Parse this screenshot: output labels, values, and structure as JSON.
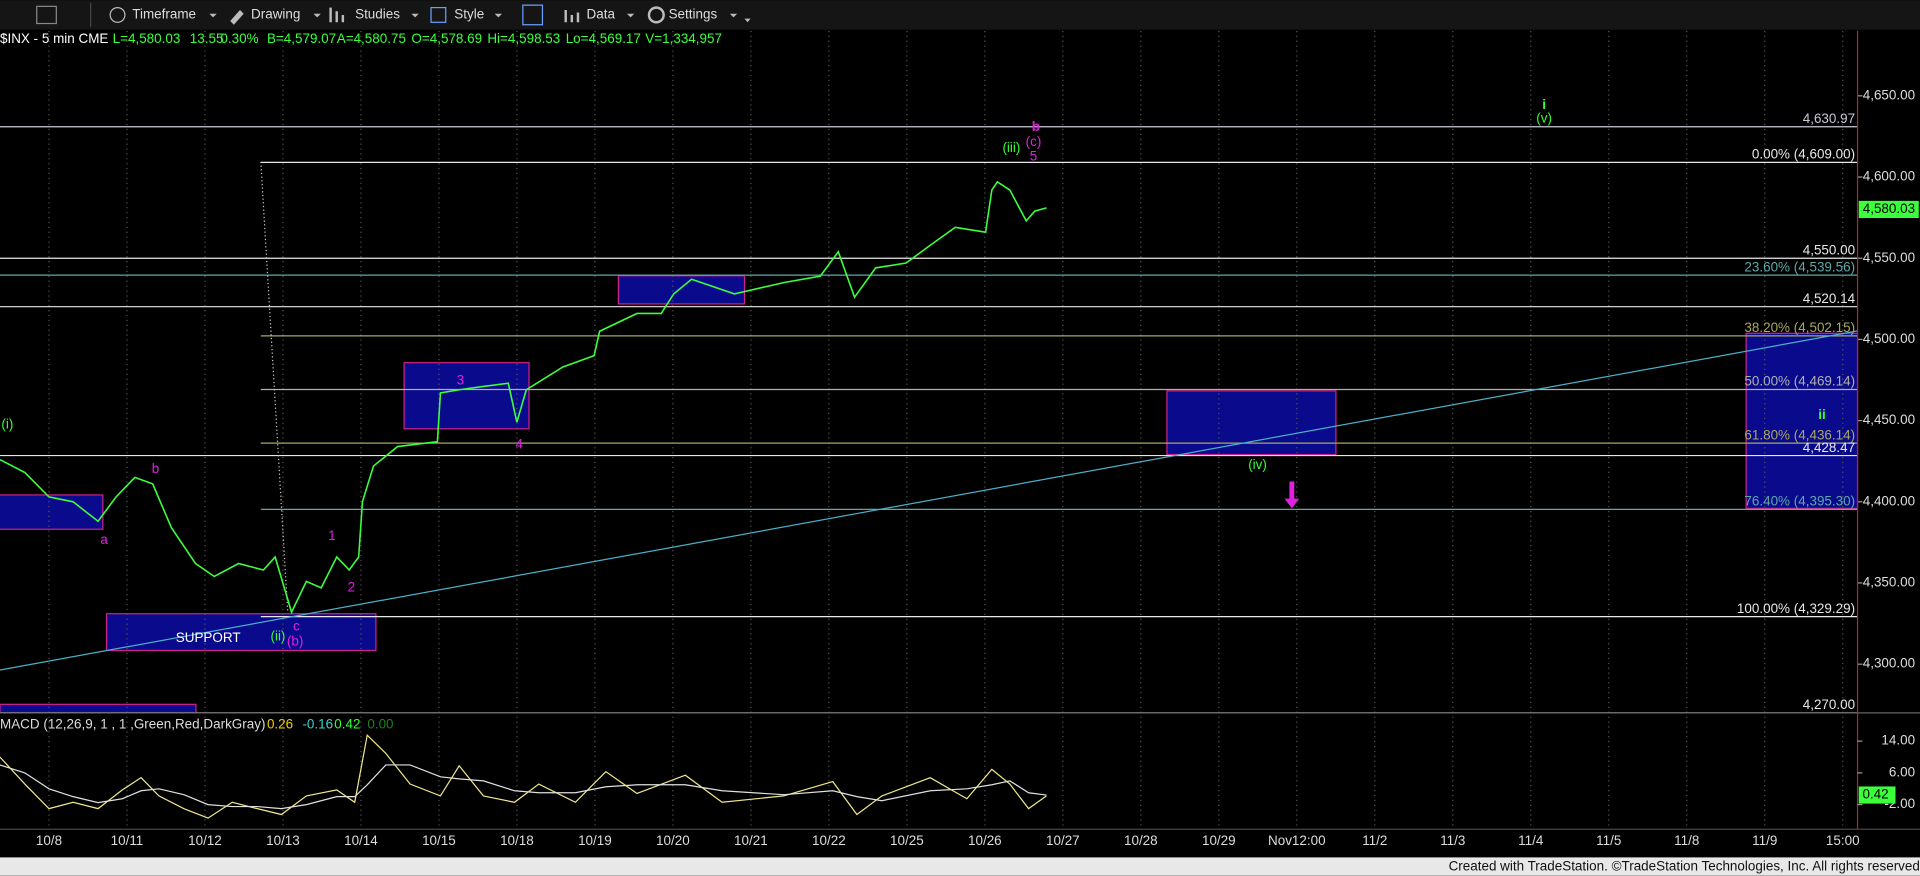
{
  "toolbar": {
    "items": [
      "Timeframe",
      "Drawing",
      "Studies",
      "Style",
      "Data",
      "Settings"
    ]
  },
  "symbol_bar": {
    "symbol": "$INX - 5 min CME",
    "fields": [
      "L=4,580.03",
      "13.55",
      "0.30%",
      "B=4,579.07",
      "A=4,580.75",
      "O=4,578.69",
      "Hi=4,598.53",
      "Lo=4,569.17",
      "V=1,334,957"
    ]
  },
  "footer": "Created with TradeStation. ©TradeStation Technologies, Inc. All rights reserved.",
  "chart_data": {
    "type": "line",
    "x": [
      -0.63,
      -0.31,
      0,
      0.31,
      0.63,
      0.86,
      1.1,
      1.33,
      1.57,
      1.88,
      2.12,
      2.43,
      2.75,
      2.9,
      3.11,
      3.3,
      3.49,
      3.69,
      3.85,
      3.97,
      4.02,
      4.16,
      4.47,
      4.98,
      5.02,
      5.26,
      5.57,
      5.89,
      6.0,
      6.12,
      6.59,
      6.99,
      7.06,
      7.54,
      7.85,
      8.01,
      8.24,
      8.79,
      9.42,
      9.89,
      10.12,
      10.33,
      10.6,
      10.99,
      11.3,
      11.62,
      12.01,
      12.09,
      12.16,
      12.32,
      12.53,
      12.64,
      12.79
    ],
    "series": [
      {
        "color": "#3cff3c",
        "values": [
          4426,
          4418,
          4403,
          4400,
          4388,
          4403,
          4415,
          4411,
          4384,
          4362,
          4354,
          4362,
          4358,
          4366,
          4332,
          4351,
          4347,
          4366,
          4358,
          4366,
          4400,
          4422,
          4434,
          4437,
          4467,
          4469,
          4471,
          4473,
          4449,
          4469,
          4483,
          4490,
          4505,
          4516,
          4516,
          4528,
          4537,
          4528,
          4535,
          4539,
          4554,
          4526,
          4544,
          4547,
          4558,
          4569,
          4566,
          4592,
          4597,
          4592,
          4573,
          4579,
          4581
        ]
      }
    ],
    "xlim": [
      -0.628,
      23.19
    ],
    "xticks": [
      {
        "value": 0,
        "label": "10/8"
      },
      {
        "value": 1,
        "label": "10/11"
      },
      {
        "value": 2,
        "label": "10/12"
      },
      {
        "value": 3,
        "label": "10/13"
      },
      {
        "value": 4,
        "label": "10/14"
      },
      {
        "value": 5,
        "label": "10/15"
      },
      {
        "value": 6,
        "label": "10/18"
      },
      {
        "value": 7,
        "label": "10/19"
      },
      {
        "value": 8,
        "label": "10/20"
      },
      {
        "value": 9,
        "label": "10/21"
      },
      {
        "value": 10,
        "label": "10/22"
      },
      {
        "value": 11,
        "label": "10/25"
      },
      {
        "value": 12,
        "label": "10/26"
      },
      {
        "value": 13,
        "label": "10/27"
      },
      {
        "value": 14,
        "label": "10/28"
      },
      {
        "value": 15,
        "label": "10/29"
      },
      {
        "value": 16,
        "label": "Nov12:00"
      },
      {
        "value": 17,
        "label": "11/2"
      },
      {
        "value": 18,
        "label": "11/3"
      },
      {
        "value": 19,
        "label": "11/4"
      },
      {
        "value": 20,
        "label": "11/5"
      },
      {
        "value": 21,
        "label": "11/8"
      },
      {
        "value": 22,
        "label": "11/9"
      },
      {
        "value": 23,
        "label": "15:00"
      }
    ],
    "ylim": [
      4270,
      4690
    ],
    "yticks": [
      {
        "value": 4300,
        "label": "4,300.00"
      },
      {
        "value": 4350,
        "label": "4,350.00"
      },
      {
        "value": 4400,
        "label": "4,400.00"
      },
      {
        "value": 4450,
        "label": "4,450.00"
      },
      {
        "value": 4500,
        "label": "4,500.00"
      },
      {
        "value": 4550,
        "label": "4,550.00"
      },
      {
        "value": 4600,
        "label": "4,600.00"
      },
      {
        "value": 4650,
        "label": "4,650.00"
      }
    ],
    "last_price": {
      "value": 4580.03,
      "label": "4,580.03"
    },
    "levels": [
      {
        "value": 4630.97,
        "label": "4,630.97",
        "color": "#c8c8d8"
      },
      {
        "value": 4609,
        "label": "0.00% (4,609.00)",
        "color": "#e8e8e8"
      },
      {
        "value": 4550,
        "label": "4,550.00",
        "color": "#e8e8e8"
      },
      {
        "value": 4539.56,
        "label": "23.60% (4,539.56)",
        "color": "#5fa8a8"
      },
      {
        "value": 4520.14,
        "label": "4,520.14",
        "color": "#e8e8e8"
      },
      {
        "value": 4502.15,
        "label": "38.20% (4,502.15)",
        "color": "#a8a860"
      },
      {
        "value": 4469.14,
        "label": "50.00% (4,469.14)",
        "color": "#b0b0b0"
      },
      {
        "value": 4436.14,
        "label": "61.80% (4,436.14)",
        "color": "#a8a860"
      },
      {
        "value": 4428.47,
        "label": "4,428.47",
        "color": "#e8e8e8"
      },
      {
        "value": 4395.3,
        "label": "76.40% (4,395.30)",
        "color": "#5fa8a8"
      },
      {
        "value": 4329.29,
        "label": "100.00% (4,329.29)",
        "color": "#e8e8e8"
      },
      {
        "value": 4270,
        "label": "4,270.00",
        "color": "#e8e8e8"
      }
    ],
    "annotations": [
      {
        "text": "(i)",
        "color": "#33ff33"
      },
      {
        "text": "a",
        "color": "#e020e0"
      },
      {
        "text": "b",
        "color": "#e020e0"
      },
      {
        "text": "c",
        "color": "#e020e0"
      },
      {
        "text": "(ii)",
        "color": "#33ff33"
      },
      {
        "text": "(b)",
        "color": "#e020e0"
      },
      {
        "text": "1",
        "color": "#e020e0"
      },
      {
        "text": "2",
        "color": "#e020e0"
      },
      {
        "text": "3",
        "color": "#e020e0"
      },
      {
        "text": "4",
        "color": "#e020e0"
      },
      {
        "text": "(iii)",
        "color": "#33ff33"
      },
      {
        "text": "(c)",
        "color": "#e020e0"
      },
      {
        "text": "5",
        "color": "#e020e0"
      },
      {
        "text": "b",
        "color": "#e020e0"
      },
      {
        "text": "(iv)",
        "color": "#33ff33"
      },
      {
        "text": "(v)",
        "color": "#33ff33"
      },
      {
        "text": "i",
        "color": "#33ff33"
      },
      {
        "text": "ii",
        "color": "#33ff33"
      },
      {
        "text": "SUPPORT",
        "color": "#ffffff"
      }
    ],
    "macd": {
      "title": "MACD (12,26,9, 1 , 1 ,Green,Red,DarkGray)",
      "readouts": [
        {
          "value": 0.26,
          "label": "0.26",
          "color": "#f0d000"
        },
        {
          "value": -0.16,
          "label": "-0.16",
          "color": "#40d0d0"
        },
        {
          "value": 0.42,
          "label": "0.42",
          "color": "#33ff33"
        },
        {
          "value": 0,
          "label": "0.00",
          "color": "#208020"
        }
      ],
      "x": [
        -0.63,
        -0.31,
        0,
        0.31,
        0.63,
        0.94,
        1.18,
        1.41,
        1.73,
        2.04,
        2.35,
        2.67,
        2.98,
        3.3,
        3.69,
        3.92,
        4.08,
        4.32,
        4.63,
        5.02,
        5.26,
        5.57,
        5.97,
        6.28,
        6.75,
        7.14,
        7.54,
        8.16,
        8.63,
        9.42,
        10.05,
        10.36,
        10.68,
        11.3,
        11.77,
        12.09,
        12.32,
        12.56,
        12.79
      ],
      "series": [
        {
          "color": "#f0e68c",
          "values": [
            10,
            3.2,
            -3,
            -1.4,
            -3,
            1.7,
            4.8,
            0.2,
            -3,
            -5.4,
            -1.4,
            -3,
            -4.5,
            0.2,
            1.7,
            -1.4,
            15.5,
            10.9,
            3.2,
            0.2,
            7.8,
            0.2,
            -1.4,
            3.2,
            -1.4,
            6.3,
            0.8,
            5.4,
            -1.4,
            0.2,
            3.8,
            -4.5,
            0.2,
            4.8,
            -0.5,
            6.9,
            3.2,
            -3,
            0.2
          ]
        },
        {
          "color": "#e0e0e0",
          "values": [
            8,
            6,
            2,
            0,
            -1.5,
            -0.5,
            1.5,
            2,
            0.5,
            -2,
            -2.5,
            -2.5,
            -3,
            -2,
            0,
            0,
            3,
            8,
            8,
            5,
            4.5,
            4,
            1.5,
            1,
            1,
            2.5,
            3,
            3,
            1.5,
            0.5,
            1.5,
            0,
            -1,
            1.5,
            2,
            3,
            4,
            1,
            0.4
          ]
        }
      ],
      "ylim": [
        -8.2,
        20.2
      ],
      "yticks": [
        {
          "value": -2,
          "label": "-2.00"
        },
        {
          "value": 6,
          "label": "6.00"
        },
        {
          "value": 14,
          "label": "14.00"
        }
      ]
    }
  }
}
